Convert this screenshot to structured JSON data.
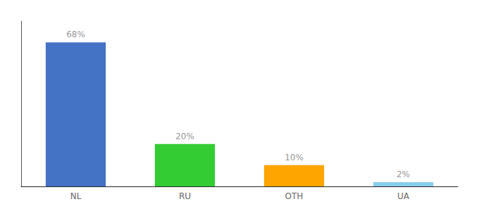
{
  "chart_data": {
    "type": "bar",
    "categories": [
      "NL",
      "RU",
      "OTH",
      "UA"
    ],
    "values": [
      68,
      20,
      10,
      2
    ],
    "value_labels": [
      "68%",
      "20%",
      "10%",
      "2%"
    ],
    "colors": [
      "#4472C4",
      "#33CC33",
      "#FFA500",
      "#87CEEB"
    ],
    "ylim": [
      0,
      78
    ],
    "data_labels": true,
    "tick_labels": "x",
    "grid": false
  }
}
